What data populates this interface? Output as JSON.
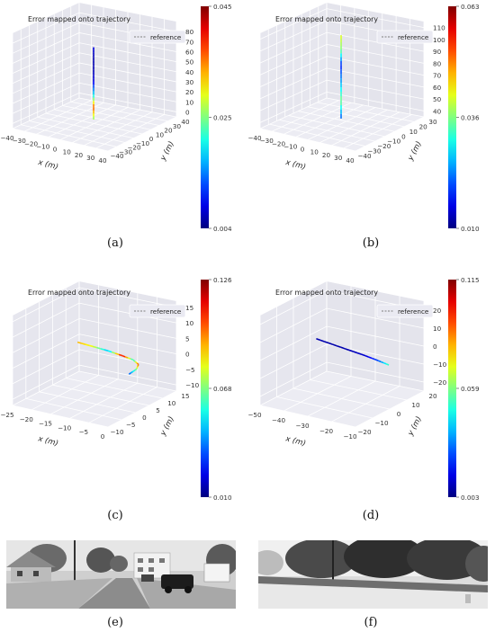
{
  "colors": {
    "pane": "#eaeaf2",
    "grid": "#ffffff",
    "reference": "#7f7f7f"
  },
  "captions": {
    "a": "(a)",
    "b": "(b)",
    "c": "(c)",
    "d": "(d)",
    "e": "(e)",
    "f": "(f)"
  },
  "photos": {
    "e": {
      "description_icon": "street-photo-icon"
    },
    "f": {
      "description_icon": "roadside-trees-photo-icon"
    }
  },
  "chart_data": [
    {
      "id": "a",
      "type": "line",
      "title": "Error mapped onto trajectory",
      "legend": "reference",
      "legend_placement": "top-right",
      "xlabel": "x (m)",
      "ylabel": "y (m)",
      "zlabel": "",
      "x_ticks": [
        "−40",
        "−30",
        "−20",
        "−10",
        "0",
        "10",
        "20",
        "30",
        "40"
      ],
      "y_ticks": [
        "−40",
        "−30",
        "−20",
        "−10",
        "0",
        "10",
        "20",
        "30",
        "40"
      ],
      "z_ticks": [
        "0",
        "10",
        "20",
        "30",
        "40",
        "50",
        "60",
        "70",
        "80"
      ],
      "xlim": [
        -40,
        40
      ],
      "ylim": [
        -40,
        40
      ],
      "zlim": [
        -5,
        90
      ],
      "colorbar": {
        "min": "0.004",
        "mid": "0.025",
        "max": "0.045"
      },
      "grid": true,
      "trajectory": {
        "x": [
          0,
          0,
          0,
          0,
          0,
          0,
          0
        ],
        "y": [
          0,
          0,
          0,
          0,
          0,
          0,
          0
        ],
        "z": [
          0,
          12,
          25,
          38,
          50,
          62,
          72
        ],
        "error": [
          0.5,
          0.8,
          0.35,
          0.1,
          0.05,
          0.05,
          0.1
        ]
      }
    },
    {
      "id": "b",
      "type": "line",
      "title": "Error mapped onto trajectory",
      "legend": "reference",
      "legend_placement": "top-right",
      "xlabel": "x (m)",
      "ylabel": "y (m)",
      "zlabel": "",
      "x_ticks": [
        "−40",
        "−30",
        "−20",
        "−10",
        "0",
        "10",
        "20",
        "30",
        "40"
      ],
      "y_ticks": [
        "−40",
        "−30",
        "−20",
        "−10",
        "0",
        "10",
        "20",
        "30"
      ],
      "z_ticks": [
        "40",
        "50",
        "60",
        "70",
        "80",
        "90",
        "100",
        "110"
      ],
      "xlim": [
        -40,
        40
      ],
      "ylim": [
        -40,
        40
      ],
      "zlim": [
        35,
        115
      ],
      "colorbar": {
        "min": "0.010",
        "mid": "0.036",
        "max": "0.063"
      },
      "grid": true,
      "trajectory": {
        "x": [
          0,
          0,
          0,
          0,
          0,
          0
        ],
        "y": [
          0,
          0,
          0,
          0,
          0,
          0
        ],
        "z": [
          40,
          55,
          70,
          85,
          98,
          110
        ],
        "error": [
          0.2,
          0.5,
          0.3,
          0.15,
          0.5,
          0.6
        ]
      }
    },
    {
      "id": "c",
      "type": "line",
      "title": "Error mapped onto trajectory",
      "legend": "reference",
      "legend_placement": "top-right",
      "xlabel": "x (m)",
      "ylabel": "y (m)",
      "zlabel": "",
      "x_ticks": [
        "−25",
        "−20",
        "−15",
        "−10",
        "−5",
        "0"
      ],
      "y_ticks": [
        "−10",
        "−5",
        "0",
        "5",
        "10",
        "15"
      ],
      "z_ticks": [
        "−10",
        "−5",
        "0",
        "5",
        "10",
        "15"
      ],
      "xlim": [
        -27,
        2
      ],
      "ylim": [
        -12,
        17
      ],
      "zlim": [
        -12,
        17
      ],
      "colorbar": {
        "min": "0.010",
        "mid": "0.068",
        "max": "0.126"
      },
      "grid": true,
      "trajectory": {
        "x": [
          0,
          -0.5,
          -2,
          -5,
          -9,
          -14,
          -19,
          -24
        ],
        "y": [
          0,
          4,
          7,
          9,
          10,
          11,
          11.5,
          12
        ],
        "z": [
          0,
          0,
          0,
          0,
          0,
          0,
          0,
          0
        ],
        "error": [
          0.2,
          0.5,
          0.8,
          0.4,
          0.9,
          0.3,
          0.6,
          0.7
        ]
      }
    },
    {
      "id": "d",
      "type": "line",
      "title": "Error mapped onto trajectory",
      "legend": "reference",
      "legend_placement": "top-right",
      "xlabel": "x (m)",
      "ylabel": "y (m)",
      "zlabel": "",
      "x_ticks": [
        "−50",
        "−40",
        "−30",
        "−20",
        "−10"
      ],
      "y_ticks": [
        "−20",
        "−10",
        "0",
        "10",
        "20"
      ],
      "z_ticks": [
        "−20",
        "−10",
        "0",
        "10",
        "20"
      ],
      "xlim": [
        -55,
        -5
      ],
      "ylim": [
        -25,
        25
      ],
      "zlim": [
        -25,
        25
      ],
      "colorbar": {
        "min": "0.003",
        "mid": "0.059",
        "max": "0.115"
      },
      "grid": true,
      "trajectory": {
        "x": [
          -5,
          -12,
          -20,
          -30,
          -40,
          -50
        ],
        "y": [
          0,
          2,
          4,
          6,
          8,
          10
        ],
        "z": [
          0,
          0,
          0,
          0,
          0,
          0
        ],
        "error": [
          0.45,
          0.2,
          0.08,
          0.05,
          0.04,
          0.05
        ]
      }
    }
  ]
}
